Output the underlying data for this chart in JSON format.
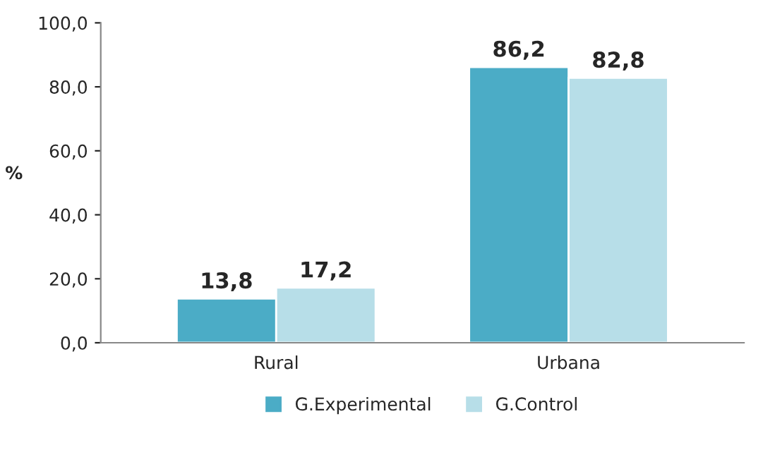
{
  "chart_data": {
    "type": "bar",
    "ylabel": "%",
    "categories": [
      "Rural",
      "Urbana"
    ],
    "series": [
      {
        "name": "G.Experimental",
        "color": "#4bacc6",
        "values": [
          13.8,
          86.2
        ],
        "value_labels": [
          "13,8",
          "86,2"
        ]
      },
      {
        "name": "G.Control",
        "color": "#b7dee8",
        "values": [
          17.2,
          82.8
        ],
        "value_labels": [
          "17,2",
          "82,8"
        ]
      }
    ],
    "ylim": [
      0,
      100
    ],
    "yticks": [
      {
        "value": 0,
        "label": "0,0"
      },
      {
        "value": 20,
        "label": "20,0"
      },
      {
        "value": 40,
        "label": "40,0"
      },
      {
        "value": 60,
        "label": "60,0"
      },
      {
        "value": 80,
        "label": "80,0"
      },
      {
        "value": 100,
        "label": "100,0"
      }
    ],
    "grid": false,
    "legend": "bottom"
  }
}
